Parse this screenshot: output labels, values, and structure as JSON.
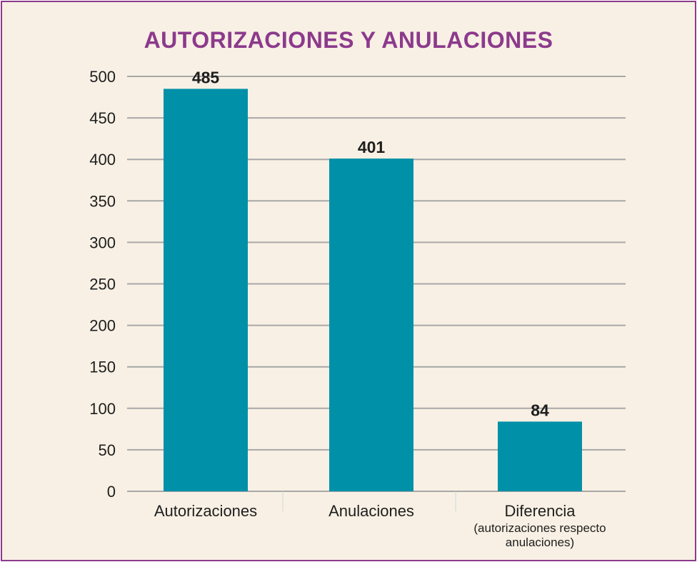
{
  "chart_data": {
    "type": "bar",
    "title": "AUTORIZACIONES Y ANULACIONES",
    "categories": [
      "Autorizaciones",
      "Anulaciones",
      "Diferencia"
    ],
    "category_sublabels": [
      "",
      "",
      "(autorizaciones respecto\nanulaciones)"
    ],
    "values": [
      485,
      401,
      84
    ],
    "data_labels": [
      "485",
      "401",
      "84"
    ],
    "ylim": [
      0,
      500
    ],
    "yticks": [
      0,
      50,
      100,
      150,
      200,
      250,
      300,
      350,
      400,
      450,
      500
    ],
    "xlabel": "",
    "ylabel": "",
    "grid": true,
    "legend": "none",
    "colors": {
      "bar": "#0090a8",
      "grid": "#a8a8a8",
      "title": "#8c3a8c",
      "background": "#f8f0e4",
      "border": "#8c3a8c"
    }
  }
}
